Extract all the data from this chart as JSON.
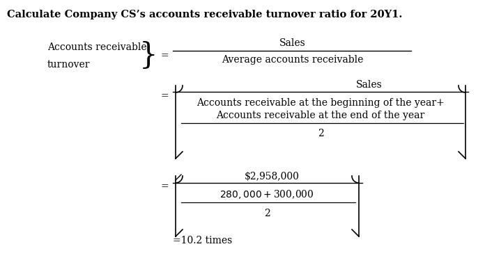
{
  "title": "Calculate Company CS’s accounts receivable turnover ratio for 20Y1.",
  "title_fontsize": 10.5,
  "title_bold": true,
  "bg_color": "#ffffff",
  "text_color": "#000000",
  "font_family": "DejaVu Serif",
  "label_left_1": "Accounts receivable",
  "label_left_2": "turnover",
  "eq1_numerator": "Sales",
  "eq1_denominator": "Average accounts receivable",
  "eq2_numerator": "Sales",
  "eq2_denom_line1": "Accounts receivable at the beginning of the year+",
  "eq2_denom_line2": "Accounts receivable at the end of the year",
  "eq2_denom_div": "2",
  "eq3_numerator": "$2,958,000",
  "eq3_denom_bracket": "$280,000 + $300,000",
  "eq3_denom_div": "2",
  "result": "=10.2 times",
  "fs": 10,
  "fs_title": 10.5
}
